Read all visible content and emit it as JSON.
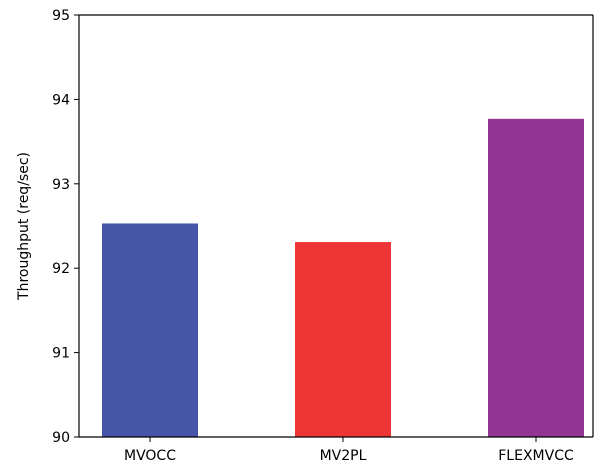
{
  "chart_data": {
    "type": "bar",
    "title": "",
    "xlabel": "",
    "ylabel": "Throughput (req/sec)",
    "categories": [
      "MVOCC",
      "MV2PL",
      "FLEXMVCC"
    ],
    "values": [
      92.53,
      92.31,
      93.77
    ],
    "colors": [
      "#4556a8",
      "#ee3535",
      "#923593"
    ],
    "ylim": [
      90,
      95
    ],
    "yticks": [
      "90",
      "91",
      "92",
      "93",
      "94",
      "95"
    ],
    "grid": false,
    "legend": "none"
  }
}
